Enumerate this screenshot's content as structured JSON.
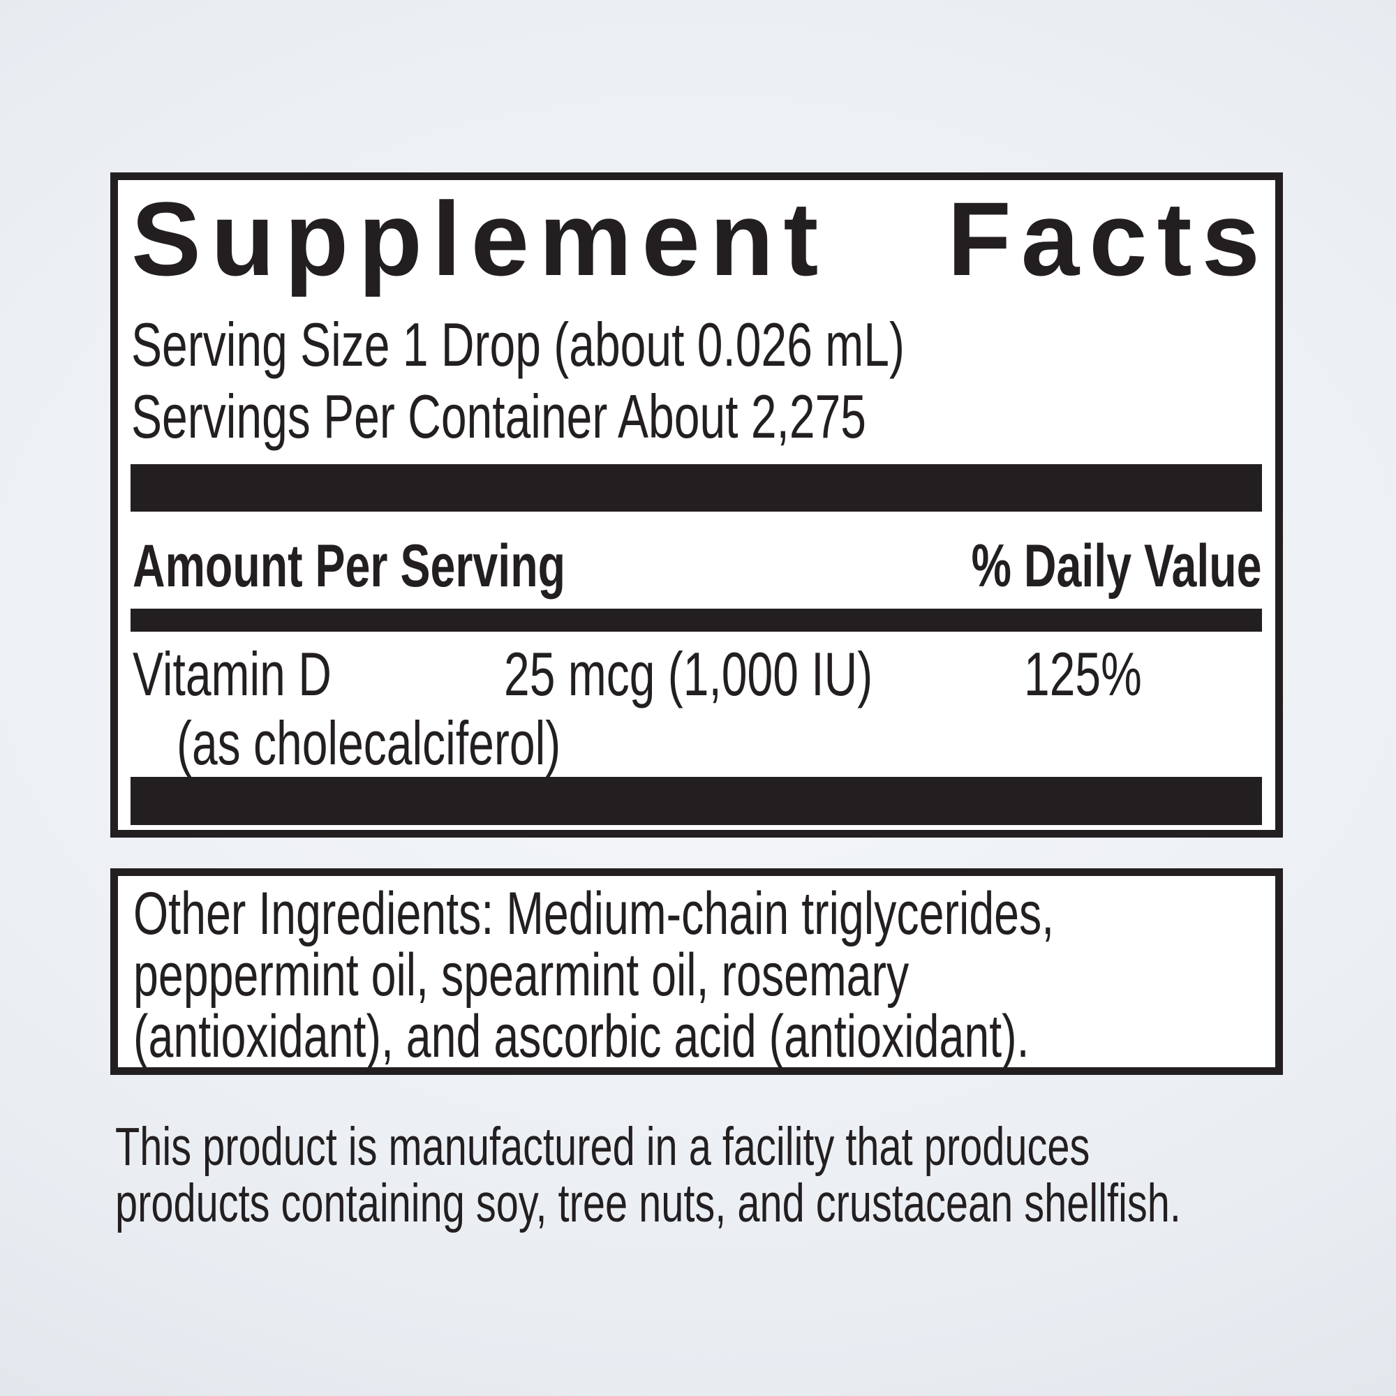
{
  "colors": {
    "ink": "#231f20",
    "panel_bg": "#ffffff",
    "bg_center": "#f6f8fa",
    "bg_mid": "#e9edf2",
    "bg_edge": "#d5dbe2"
  },
  "panel": {
    "title": "Supplement Facts",
    "title_word1": "Supplement",
    "title_word2": "Facts",
    "serving_size": "Serving Size 1 Drop (about 0.026 mL)",
    "servings_per_container": "Servings Per Container About 2,275",
    "amount_header": "Amount Per Serving",
    "dv_header": "% Daily Value",
    "row": {
      "name": "Vitamin D",
      "note": "(as cholecalciferol)",
      "amount": "25 mcg (1,000 IU)",
      "daily_value": "125%"
    }
  },
  "other_ingredients": {
    "line1": "Other Ingredients: Medium-chain triglycerides,",
    "line2": "peppermint oil, spearmint oil, rosemary",
    "line3": "(antioxidant), and ascorbic acid (antioxidant)."
  },
  "allergen": {
    "line1": "This product is manufactured in a facility that produces",
    "line2": "products containing soy, tree nuts, and crustacean shellfish."
  }
}
